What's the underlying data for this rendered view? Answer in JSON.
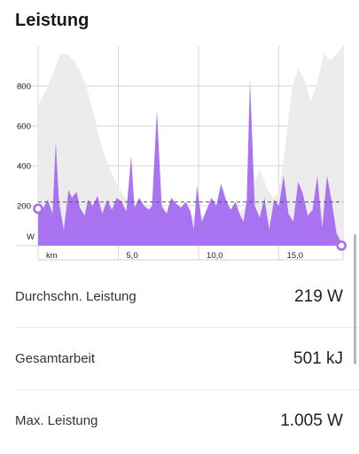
{
  "title": "Leistung",
  "colors": {
    "power_fill": "#a56cf0",
    "elevation_fill": "#ececec",
    "avg_line": "#555555",
    "marker": "#a56cf0"
  },
  "chart_data": {
    "type": "area",
    "ylabel": "W",
    "xlabel": "km",
    "y_ticks": [
      "200",
      "400",
      "600",
      "800"
    ],
    "x_ticks": [
      "5,0",
      "10,0",
      "15,0"
    ],
    "ylim": [
      0,
      1000
    ],
    "xlim": [
      0,
      19
    ],
    "grid": true,
    "average_line_value": 219,
    "power_series": {
      "name": "",
      "x": [
        0,
        0.3,
        0.6,
        0.9,
        1.1,
        1.3,
        1.6,
        1.9,
        2.1,
        2.4,
        2.6,
        2.9,
        3.1,
        3.4,
        3.7,
        4.0,
        4.3,
        4.6,
        4.9,
        5.2,
        5.5,
        5.8,
        6.0,
        6.3,
        6.6,
        6.9,
        7.1,
        7.4,
        7.7,
        8.0,
        8.3,
        8.6,
        8.9,
        9.2,
        9.5,
        9.7,
        9.9,
        10.2,
        10.5,
        10.8,
        11.1,
        11.4,
        11.7,
        12.0,
        12.3,
        12.6,
        12.8,
        13.0,
        13.2,
        13.5,
        13.8,
        14.1,
        14.4,
        14.7,
        15.0,
        15.3,
        15.6,
        15.9,
        16.2,
        16.5,
        16.8,
        17.1,
        17.4,
        17.7,
        18.0,
        18.3,
        18.6,
        19.0
      ],
      "y": [
        210,
        185,
        230,
        160,
        520,
        220,
        80,
        280,
        240,
        270,
        190,
        150,
        230,
        200,
        250,
        160,
        230,
        180,
        240,
        220,
        170,
        450,
        190,
        240,
        200,
        180,
        200,
        680,
        200,
        160,
        240,
        210,
        190,
        220,
        170,
        80,
        300,
        120,
        180,
        240,
        200,
        310,
        230,
        180,
        220,
        150,
        120,
        230,
        830,
        200,
        140,
        240,
        80,
        230,
        200,
        350,
        160,
        120,
        320,
        260,
        150,
        180,
        350,
        90,
        350,
        220,
        60,
        0
      ]
    },
    "elevation_series": {
      "name": "",
      "x": [
        0,
        0.5,
        1.0,
        1.4,
        1.8,
        2.2,
        2.6,
        3.0,
        3.5,
        4.0,
        4.5,
        5.0,
        5.5,
        6.0,
        6.5,
        7.0,
        8.0,
        9.0,
        10.0,
        11.0,
        12.0,
        12.5,
        13.0,
        13.4,
        13.8,
        14.2,
        14.6,
        15.0,
        15.4,
        15.8,
        16.2,
        16.6,
        17.0,
        17.4,
        17.8,
        18.2,
        18.6,
        19.0
      ],
      "y": [
        700,
        780,
        880,
        960,
        960,
        930,
        880,
        800,
        650,
        480,
        380,
        290,
        230,
        200,
        190,
        180,
        170,
        160,
        150,
        145,
        150,
        160,
        200,
        300,
        380,
        300,
        240,
        260,
        500,
        780,
        890,
        830,
        720,
        820,
        960,
        930,
        960,
        1000
      ]
    },
    "start_marker": {
      "x": 0,
      "y": 185
    },
    "end_marker": {
      "x": 18.9,
      "y": 0
    }
  },
  "stats": [
    {
      "label": "Durchschn. Leistung",
      "value": "219 W"
    },
    {
      "label": "Gesamtarbeit",
      "value": "501 kJ"
    },
    {
      "label": "Max. Leistung",
      "value": "1.005 W"
    }
  ]
}
